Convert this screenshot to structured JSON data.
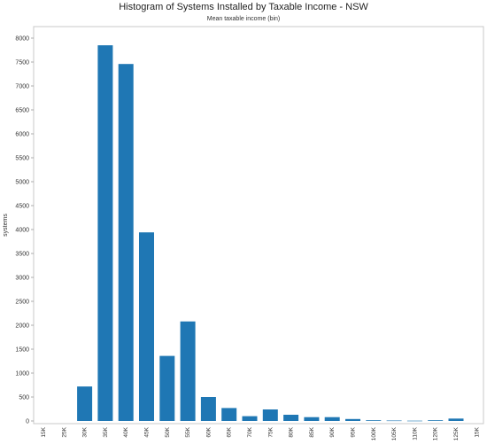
{
  "chart_data": {
    "type": "bar",
    "title": "Histogram of Systems Installed by Taxable Income - NSW",
    "subtitle": "Mean taxable income (bin)",
    "ylabel": "systems",
    "xlabel": "",
    "ylim": [
      0,
      8000
    ],
    "yticks": [
      0,
      500,
      1000,
      1500,
      2000,
      2500,
      3000,
      3500,
      4000,
      4500,
      5000,
      5500,
      6000,
      6500,
      7000,
      7500,
      8000
    ],
    "grid": false,
    "legend": "none",
    "bar_color": "#1f77b4",
    "categories": [
      "15K",
      "25K",
      "30K",
      "35K",
      "40K",
      "45K",
      "50K",
      "55K",
      "60K",
      "65K",
      "70K",
      "75K",
      "80K",
      "85K",
      "90K",
      "95K",
      "100K",
      "105K",
      "110K",
      "120K",
      "125K",
      "15K"
    ],
    "values": [
      0,
      0,
      720,
      7850,
      7460,
      3940,
      1360,
      2080,
      500,
      270,
      100,
      240,
      130,
      80,
      80,
      40,
      15,
      10,
      5,
      15,
      50,
      0
    ]
  }
}
